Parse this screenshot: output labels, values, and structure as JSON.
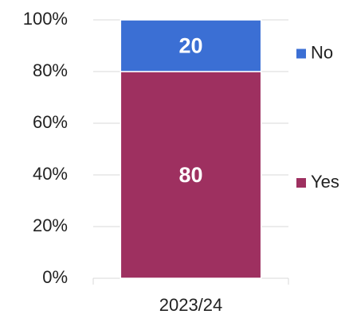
{
  "chart_data": {
    "type": "stacked_bar",
    "categories": [
      "2023/24"
    ],
    "series": [
      {
        "name": "Yes",
        "color": "#9e3060",
        "values": [
          80
        ]
      },
      {
        "name": "No",
        "color": "#3b6fd4",
        "values": [
          20
        ]
      }
    ],
    "ylim": [
      0,
      100
    ],
    "yticks": [
      {
        "value": 0,
        "label": "0%"
      },
      {
        "value": 20,
        "label": "20%"
      },
      {
        "value": 40,
        "label": "40%"
      },
      {
        "value": 60,
        "label": "60%"
      },
      {
        "value": 80,
        "label": "80%"
      },
      {
        "value": 100,
        "label": "100%"
      }
    ],
    "grid": true,
    "legend": "right"
  }
}
